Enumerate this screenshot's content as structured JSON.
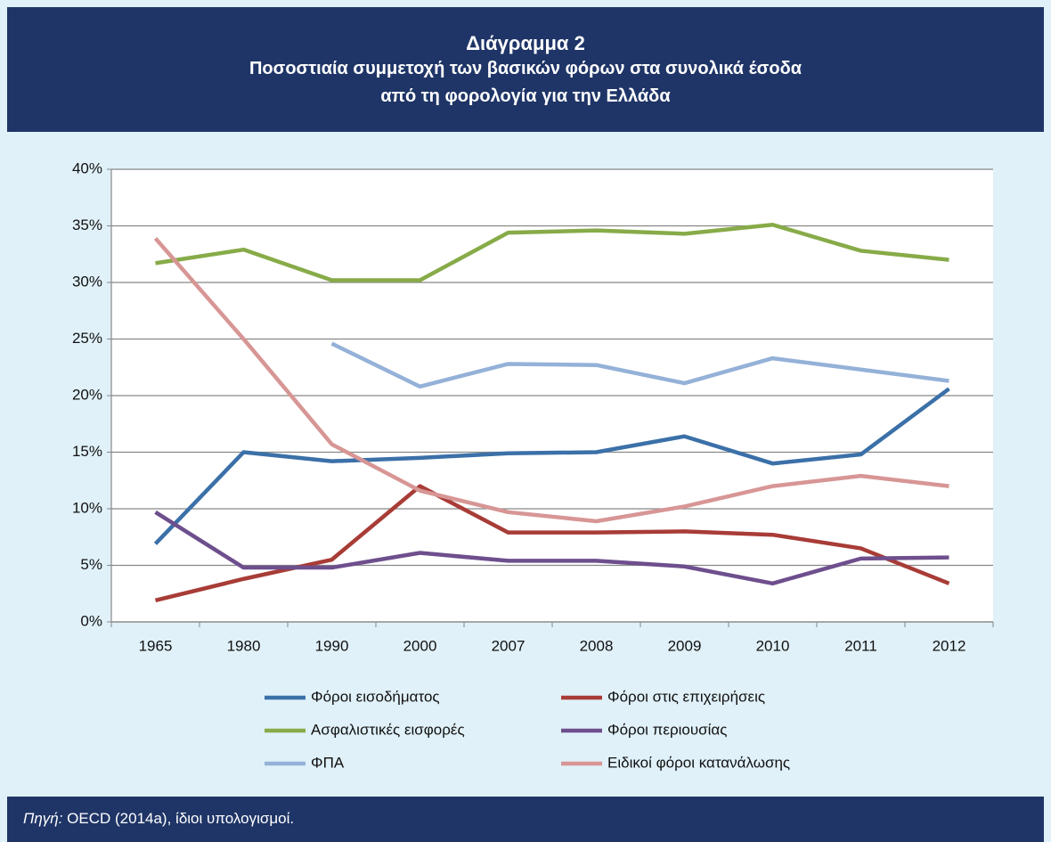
{
  "chart_data": {
    "type": "line",
    "title": "Διάγραμμα 2",
    "subtitle": [
      "Ποσοστιαία συμμετοχή των βασικών φόρων στα συνολικά έσοδα",
      "από τη φορολογία για την Ελλάδα"
    ],
    "source_label": "Πηγή:",
    "source": "OECD (2014a), ίδιοι υπολογισμοί.",
    "categories": [
      "1965",
      "1980",
      "1990",
      "2000",
      "2007",
      "2008",
      "2009",
      "2010",
      "2011",
      "2012"
    ],
    "ylim": [
      0,
      40
    ],
    "yticks": [
      {
        "value": 0,
        "label": "0%"
      },
      {
        "value": 5,
        "label": "5%"
      },
      {
        "value": 10,
        "label": "10%"
      },
      {
        "value": 15,
        "label": "15%"
      },
      {
        "value": 20,
        "label": "20%"
      },
      {
        "value": 25,
        "label": "25%"
      },
      {
        "value": 30,
        "label": "30%"
      },
      {
        "value": 35,
        "label": "35%"
      },
      {
        "value": 40,
        "label": "40%"
      }
    ],
    "grid": true,
    "series": [
      {
        "name": "Φόροι εισοδήματος",
        "color": "#3b70a8",
        "values": [
          6.9,
          15.0,
          14.2,
          14.5,
          14.9,
          15.0,
          16.4,
          14.0,
          14.8,
          20.6
        ]
      },
      {
        "name": "Φόροι στις επιχειρήσεις",
        "color": "#a83c37",
        "values": [
          1.9,
          3.8,
          5.5,
          12.0,
          7.9,
          7.9,
          8.0,
          7.7,
          6.5,
          3.4
        ]
      },
      {
        "name": "Ασφαλιστικές εισφορές",
        "color": "#87ab48",
        "values": [
          31.7,
          32.9,
          30.2,
          30.2,
          34.4,
          34.6,
          34.3,
          35.1,
          32.8,
          32.0
        ]
      },
      {
        "name": "Φόροι περιουσίας",
        "color": "#6e4f8d",
        "values": [
          9.7,
          4.8,
          4.8,
          6.1,
          5.4,
          5.4,
          4.9,
          3.4,
          5.6,
          5.7
        ]
      },
      {
        "name": "ΦΠΑ",
        "color": "#94b1d8",
        "values": [
          null,
          null,
          24.6,
          20.8,
          22.8,
          22.7,
          21.1,
          23.3,
          22.3,
          21.3
        ]
      },
      {
        "name": "Ειδικοί φόροι κατανάλωσης",
        "color": "#d79695",
        "values": [
          33.9,
          25.0,
          15.7,
          11.6,
          9.7,
          8.9,
          10.2,
          12.0,
          12.9,
          12.0
        ]
      }
    ]
  }
}
